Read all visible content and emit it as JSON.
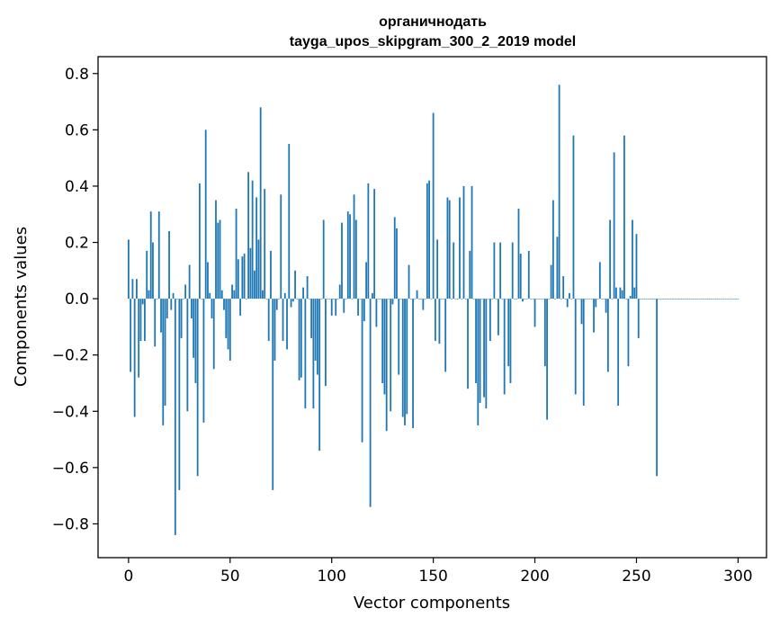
{
  "chart_data": {
    "type": "bar",
    "title": "органичнодать",
    "subtitle": "tayga_upos_skipgram_300_2_2019 model",
    "xlabel": "Vector components",
    "ylabel": "Components values",
    "xlim": [
      -15,
      314
    ],
    "ylim": [
      -0.92,
      0.86
    ],
    "xticks": [
      0,
      50,
      100,
      150,
      200,
      250,
      300
    ],
    "yticks": [
      -0.8,
      -0.6,
      -0.4,
      -0.2,
      0.0,
      0.2,
      0.4,
      0.6,
      0.8
    ],
    "ytick_labels": [
      "−0.8",
      "−0.6",
      "−0.4",
      "−0.2",
      "0.0",
      "0.2",
      "0.4",
      "0.6",
      "0.8"
    ],
    "grid": false,
    "bar_color": "#1f77b4",
    "x_start": 0,
    "values": [
      0.21,
      -0.26,
      0.07,
      -0.42,
      0.07,
      -0.28,
      -0.15,
      -0.02,
      -0.15,
      0.17,
      0.03,
      0.31,
      0.2,
      -0.17,
      0.0,
      0.31,
      -0.12,
      -0.45,
      -0.38,
      -0.07,
      0.24,
      -0.04,
      0.02,
      -0.84,
      0.0,
      -0.68,
      -0.14,
      0.0,
      0.05,
      -0.4,
      0.12,
      -0.07,
      -0.21,
      -0.3,
      -0.63,
      0.41,
      0.0,
      -0.44,
      0.6,
      0.13,
      0.02,
      -0.07,
      -0.25,
      0.35,
      0.27,
      0.28,
      0.03,
      -0.04,
      -0.14,
      -0.18,
      -0.22,
      0.05,
      0.03,
      0.32,
      0.14,
      -0.06,
      0.15,
      0.16,
      0.0,
      0.45,
      0.18,
      0.42,
      0.1,
      0.36,
      0.21,
      0.68,
      0.03,
      0.39,
      0.0,
      -0.15,
      0.17,
      -0.68,
      -0.22,
      -0.04,
      0.0,
      0.37,
      -0.15,
      0.02,
      -0.18,
      0.55,
      -0.03,
      -0.01,
      0.1,
      0.0,
      -0.29,
      -0.28,
      0.04,
      -0.39,
      0.08,
      0.0,
      -0.14,
      -0.39,
      -0.22,
      -0.27,
      -0.54,
      0.0,
      0.28,
      -0.31,
      0.0,
      0.0,
      -0.06,
      0.0,
      -0.06,
      0.0,
      0.05,
      0.27,
      -0.05,
      0.0,
      0.31,
      0.3,
      0.0,
      0.37,
      0.28,
      -0.06,
      0.0,
      -0.51,
      -0.08,
      0.13,
      0.41,
      -0.74,
      0.02,
      0.39,
      -0.1,
      0.0,
      0.0,
      -0.3,
      -0.34,
      -0.47,
      0.0,
      -0.4,
      -0.02,
      0.29,
      0.25,
      -0.27,
      0.0,
      -0.42,
      -0.45,
      -0.41,
      0.12,
      0.0,
      -0.46,
      0.0,
      0.03,
      0.0,
      0.0,
      -0.04,
      0.0,
      0.41,
      0.42,
      0.0,
      0.66,
      -0.15,
      0.21,
      -0.16,
      0.0,
      0.0,
      -0.26,
      0.36,
      0.35,
      0.0,
      0.2,
      0.0,
      0.0,
      0.36,
      0.0,
      0.4,
      0.0,
      -0.32,
      0.17,
      0.4,
      0.0,
      -0.3,
      -0.45,
      -0.37,
      0.0,
      -0.35,
      -0.39,
      0.0,
      -0.15,
      0.0,
      0.2,
      0.0,
      -0.13,
      0.2,
      0.0,
      -0.34,
      0.0,
      -0.24,
      -0.3,
      0.2,
      0.0,
      0.0,
      0.32,
      0.16,
      -0.01,
      0.0,
      0.0,
      0.17,
      0.0,
      0.0,
      -0.1,
      0.0,
      0.0,
      0.0,
      0.0,
      -0.24,
      -0.43,
      0.0,
      0.12,
      0.35,
      0.0,
      0.22,
      0.76,
      0.0,
      0.08,
      0.0,
      -0.03,
      0.02,
      0.0,
      0.58,
      -0.34,
      0.0,
      0.0,
      -0.09,
      -0.38,
      0.0,
      0.0,
      0.0,
      0.0,
      -0.12,
      -0.03,
      0.0,
      0.13,
      0.0,
      0.0,
      -0.05,
      -0.26,
      0.28,
      0.0,
      0.52,
      0.04,
      -0.38,
      0.04,
      0.03,
      0.58,
      0.0,
      -0.24,
      0.01,
      0.28,
      0.04,
      0.23,
      -0.14,
      0.0,
      0.0,
      0.0,
      0.0,
      0.0,
      0.0,
      0.0,
      0.0,
      -0.63,
      0.0,
      0.0,
      0.0,
      0.0,
      0.0,
      0.0,
      0.0,
      0.0,
      0.0,
      0.0,
      0.0,
      0.0,
      0.0,
      0.0,
      0.0,
      0.0,
      0.0,
      0.0,
      0.0,
      0.0,
      0.0,
      0.0,
      0.0,
      0.0,
      0.0,
      0.0,
      0.0,
      0.0,
      0.0,
      0.0,
      0.0,
      0.0,
      0.0,
      0.0,
      0.0,
      0.0,
      0.0,
      0.0,
      0.0,
      0.0
    ]
  }
}
